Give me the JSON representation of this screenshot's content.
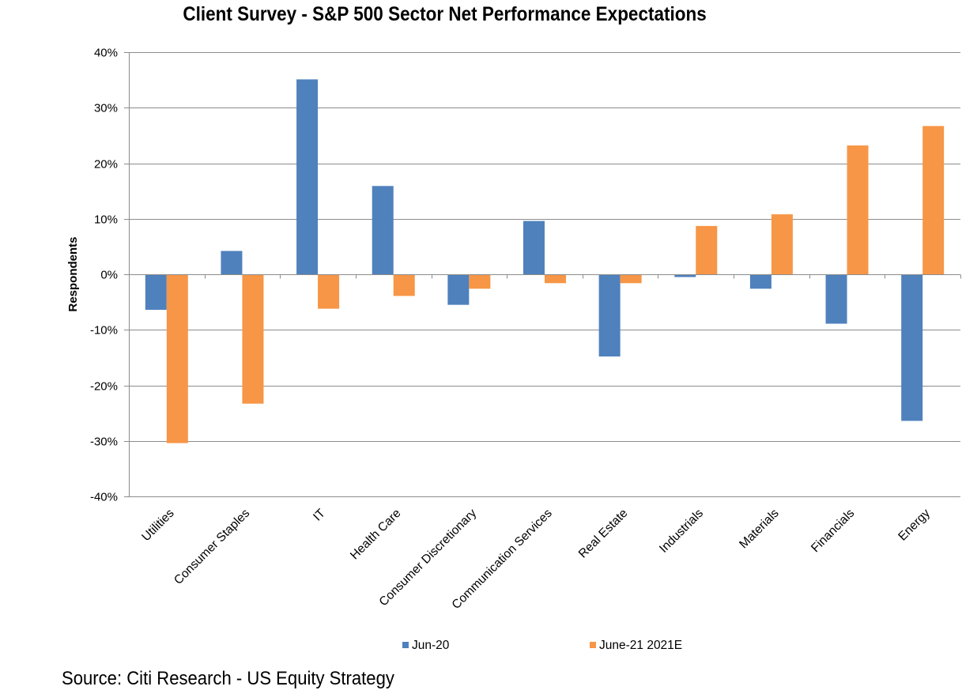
{
  "chart_data": {
    "type": "bar",
    "title": "Client Survey - S&P 500 Sector Net Performance Expectations",
    "xlabel": "",
    "ylabel": "Respondents",
    "ylim": [
      -0.4,
      0.4
    ],
    "ytick_values": [
      0.4,
      0.3,
      0.2,
      0.1,
      0.0,
      -0.1,
      -0.2,
      -0.3,
      -0.4
    ],
    "ytick_labels": [
      "40%",
      "30%",
      "20%",
      "10%",
      "0%",
      "-10%",
      "-20%",
      "-30%",
      "-40%"
    ],
    "grid": true,
    "legend_position": "bottom",
    "categories": [
      "Utilities",
      "Consumer Staples",
      "IT",
      "Health Care",
      "Consumer Discretionary",
      "Communication Services",
      "Real Estate",
      "Industrials",
      "Materials",
      "Financials",
      "Energy"
    ],
    "series": [
      {
        "name": "Jun-20",
        "color": "#4f81bd",
        "values": [
          -0.064,
          0.042,
          0.351,
          0.159,
          -0.055,
          0.096,
          -0.148,
          -0.005,
          -0.026,
          -0.089,
          -0.264
        ]
      },
      {
        "name": "June-21 2021E",
        "color": "#f79646",
        "values": [
          -0.304,
          -0.233,
          -0.062,
          -0.039,
          -0.026,
          -0.016,
          -0.016,
          0.087,
          0.108,
          0.232,
          0.267
        ]
      }
    ]
  },
  "footer": {
    "source": "Source: Citi Research - US Equity Strategy"
  }
}
